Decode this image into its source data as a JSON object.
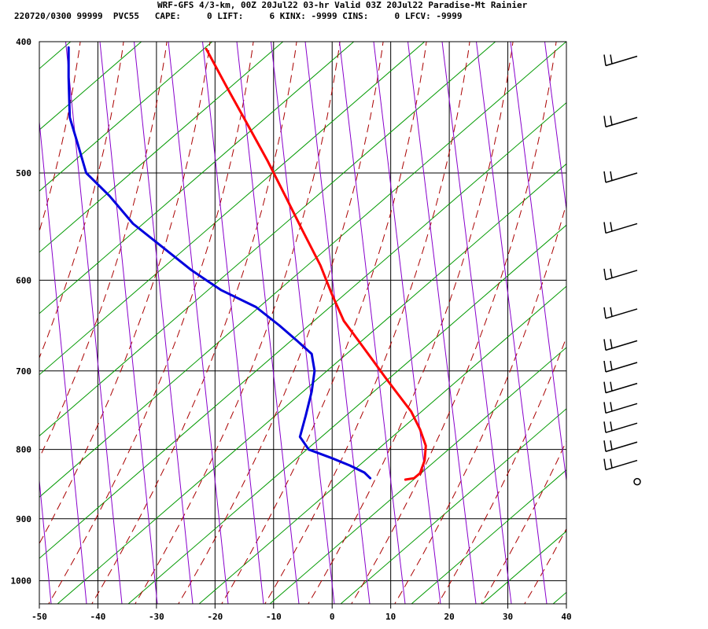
{
  "header": {
    "line1": "WRF-GFS 4/3-km, 00Z 20Jul22 03-hr Valid 03Z 20Jul22 Paradise-Mt Rainier",
    "line2": "220720/0300 99999  PVC55   CAPE:     0 LIFT:     6 KINX: -9999 CINS:     0 LFCV: -9999"
  },
  "chart_data": {
    "type": "line",
    "title": "WRF-GFS 4/3-km, 00Z 20Jul22 03-hr Valid 03Z 20Jul22 Paradise-Mt Rainier",
    "xlabel": "",
    "ylabel": "",
    "x_axis": {
      "ticks": [
        -50,
        -40,
        -30,
        -20,
        -10,
        0,
        10,
        20,
        30,
        40
      ],
      "range": [
        -50,
        40
      ]
    },
    "y_axis": {
      "scale": "log",
      "ticks": [
        400,
        500,
        600,
        700,
        800,
        900,
        1000
      ],
      "range": [
        400,
        1040
      ]
    },
    "grid": true,
    "colors": {
      "temperature": "#ff0000",
      "dewpoint": "#0000dd",
      "dry_adiabat": "#009900",
      "moist_adiabat": "#aa0000",
      "mixing_ratio": "#8800cc",
      "grid": "#000000"
    },
    "series": [
      {
        "key": "temperature",
        "points": [
          [
            -21.5,
            405
          ],
          [
            -18,
            432
          ],
          [
            -14.5,
            460
          ],
          [
            -11,
            490
          ],
          [
            -8,
            520
          ],
          [
            -5,
            552
          ],
          [
            -2,
            585
          ],
          [
            0,
            615
          ],
          [
            2,
            643
          ],
          [
            4.5,
            665
          ],
          [
            7,
            688
          ],
          [
            9,
            707
          ],
          [
            11,
            726
          ],
          [
            13.5,
            750
          ],
          [
            15,
            773
          ],
          [
            16,
            795
          ],
          [
            15.8,
            815
          ],
          [
            15,
            833
          ],
          [
            14,
            840
          ],
          [
            12.5,
            842
          ]
        ]
      },
      {
        "key": "dewpoint",
        "points": [
          [
            -45,
            404
          ],
          [
            -45,
            425
          ],
          [
            -44.8,
            455
          ],
          [
            -43.5,
            475
          ],
          [
            -42,
            500
          ],
          [
            -38,
            520
          ],
          [
            -34,
            545
          ],
          [
            -29,
            567
          ],
          [
            -24,
            590
          ],
          [
            -19,
            610
          ],
          [
            -13,
            628
          ],
          [
            -9,
            648
          ],
          [
            -6,
            665
          ],
          [
            -3.5,
            680
          ],
          [
            -3,
            700
          ],
          [
            -3.5,
            725
          ],
          [
            -4.5,
            755
          ],
          [
            -5.5,
            783
          ],
          [
            -4,
            800
          ],
          [
            0,
            812
          ],
          [
            3,
            822
          ],
          [
            5.5,
            832
          ],
          [
            6.5,
            840
          ]
        ]
      }
    ],
    "wind_barbs": [
      {
        "p": 410,
        "type": "barb"
      },
      {
        "p": 455,
        "type": "barb"
      },
      {
        "p": 500,
        "type": "barb"
      },
      {
        "p": 545,
        "type": "barb"
      },
      {
        "p": 590,
        "type": "barb"
      },
      {
        "p": 630,
        "type": "barb"
      },
      {
        "p": 665,
        "type": "barb"
      },
      {
        "p": 690,
        "type": "barb"
      },
      {
        "p": 715,
        "type": "barb"
      },
      {
        "p": 740,
        "type": "barb"
      },
      {
        "p": 765,
        "type": "barb"
      },
      {
        "p": 790,
        "type": "barb"
      },
      {
        "p": 815,
        "type": "barb"
      },
      {
        "p": 845,
        "type": "calm"
      }
    ]
  }
}
